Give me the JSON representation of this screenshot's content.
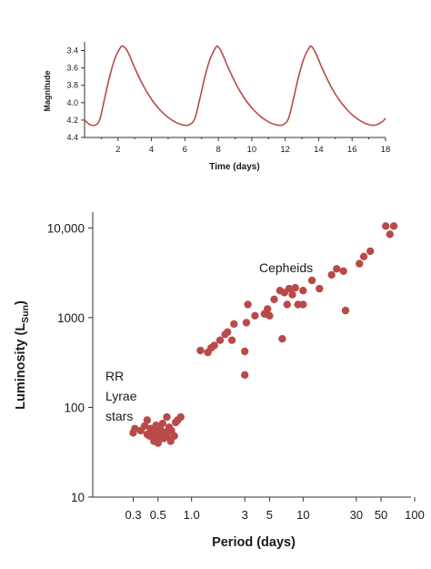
{
  "colors": {
    "data": "#b94a48",
    "axis": "#333333",
    "text": "#1a1a1a"
  },
  "chart_data": [
    {
      "type": "line",
      "title": "",
      "xlabel": "Time (days)",
      "ylabel": "Magnitude",
      "xlim": [
        0,
        18
      ],
      "ylim": [
        4.4,
        3.3
      ],
      "y_inverted": true,
      "x_ticks": [
        2,
        4,
        6,
        8,
        10,
        12,
        14,
        16,
        18
      ],
      "y_ticks": [
        3.4,
        3.6,
        3.8,
        4.0,
        4.2,
        4.4
      ],
      "x_tick_labels": [
        "2",
        "4",
        "6",
        "8",
        "10",
        "12",
        "14",
        "16",
        "18"
      ],
      "y_tick_labels": [
        "3.4",
        "3.6",
        "3.8",
        "4.0",
        "4.2",
        "4.4"
      ],
      "grid": false,
      "series": [
        {
          "x": [
            0.0,
            0.3,
            0.6,
            0.9,
            1.2,
            1.5,
            1.8,
            2.1,
            2.3,
            2.6,
            3.0,
            3.5,
            4.0,
            4.5,
            5.0,
            5.5,
            6.0,
            6.3,
            6.6,
            6.9,
            7.2,
            7.5,
            7.8,
            7.95,
            8.2,
            8.6,
            9.1,
            9.6,
            10.1,
            10.6,
            11.1,
            11.6,
            11.9,
            12.2,
            12.5,
            12.8,
            13.1,
            13.4,
            13.55,
            13.8,
            14.2,
            14.7,
            15.2,
            15.7,
            16.2,
            16.7,
            17.2,
            17.5,
            17.8,
            18.0
          ],
          "y": [
            4.2,
            4.25,
            4.26,
            4.2,
            3.95,
            3.7,
            3.5,
            3.38,
            3.35,
            3.42,
            3.6,
            3.8,
            3.96,
            4.08,
            4.17,
            4.23,
            4.26,
            4.25,
            4.18,
            3.95,
            3.7,
            3.5,
            3.38,
            3.35,
            3.42,
            3.6,
            3.8,
            3.96,
            4.08,
            4.17,
            4.23,
            4.26,
            4.25,
            4.18,
            3.95,
            3.7,
            3.5,
            3.38,
            3.35,
            3.42,
            3.6,
            3.8,
            3.96,
            4.08,
            4.17,
            4.23,
            4.26,
            4.25,
            4.22,
            4.18
          ]
        }
      ]
    },
    {
      "type": "scatter",
      "title": "",
      "xlabel": "Period (days)",
      "ylabel_main": "Luminosity (L",
      "ylabel_sub": "Sun",
      "ylabel_close": ")",
      "x_scale": "log",
      "y_scale": "log",
      "xlim": [
        0.13,
        100
      ],
      "ylim": [
        10,
        15000
      ],
      "x_ticks": [
        0.3,
        0.5,
        1.0,
        3,
        5,
        10,
        30,
        50,
        100
      ],
      "x_tick_labels": [
        "0.3",
        "0.5",
        "1.0",
        "3",
        "5",
        "10",
        "30",
        "50",
        "100"
      ],
      "y_ticks": [
        10,
        100,
        1000,
        10000
      ],
      "y_tick_labels": [
        "10",
        "100",
        "1000",
        "10,000"
      ],
      "grid": false,
      "annotations": [
        {
          "lines": [
            "RR",
            "Lyrae",
            "stars"
          ]
        },
        {
          "lines": [
            "Cepheids"
          ]
        }
      ],
      "series": [
        {
          "points": [
            [
              0.3,
              52
            ],
            [
              0.31,
              58
            ],
            [
              0.35,
              55
            ],
            [
              0.38,
              62
            ],
            [
              0.4,
              50
            ],
            [
              0.4,
              72
            ],
            [
              0.42,
              48
            ],
            [
              0.43,
              58
            ],
            [
              0.45,
              55
            ],
            [
              0.46,
              42
            ],
            [
              0.47,
              50
            ],
            [
              0.48,
              63
            ],
            [
              0.5,
              45
            ],
            [
              0.5,
              40
            ],
            [
              0.52,
              58
            ],
            [
              0.53,
              50
            ],
            [
              0.55,
              66
            ],
            [
              0.56,
              45
            ],
            [
              0.58,
              53
            ],
            [
              0.6,
              48
            ],
            [
              0.6,
              78
            ],
            [
              0.63,
              60
            ],
            [
              0.65,
              42
            ],
            [
              0.66,
              55
            ],
            [
              0.7,
              48
            ],
            [
              0.72,
              68
            ],
            [
              0.75,
              72
            ],
            [
              0.8,
              78
            ],
            [
              1.2,
              430
            ],
            [
              1.4,
              410
            ],
            [
              1.5,
              460
            ],
            [
              1.6,
              490
            ],
            [
              1.8,
              560
            ],
            [
              2.0,
              650
            ],
            [
              2.1,
              690
            ],
            [
              2.3,
              560
            ],
            [
              2.4,
              850
            ],
            [
              3.0,
              230
            ],
            [
              3.0,
              420
            ],
            [
              3.1,
              880
            ],
            [
              3.2,
              1400
            ],
            [
              3.7,
              1050
            ],
            [
              4.5,
              1100
            ],
            [
              4.8,
              1250
            ],
            [
              5.0,
              1050
            ],
            [
              5.5,
              1600
            ],
            [
              6.2,
              2000
            ],
            [
              6.5,
              580
            ],
            [
              6.8,
              1900
            ],
            [
              7.2,
              1400
            ],
            [
              7.5,
              2100
            ],
            [
              8.0,
              1800
            ],
            [
              8.5,
              2150
            ],
            [
              9.0,
              1400
            ],
            [
              10.0,
              1400
            ],
            [
              10.0,
              2000
            ],
            [
              12,
              2600
            ],
            [
              14,
              2100
            ],
            [
              18,
              3000
            ],
            [
              20,
              3500
            ],
            [
              23,
              3300
            ],
            [
              24,
              1200
            ],
            [
              32,
              4000
            ],
            [
              35,
              4800
            ],
            [
              40,
              5500
            ],
            [
              55,
              10500
            ],
            [
              60,
              8500
            ],
            [
              65,
              10500
            ]
          ]
        }
      ]
    }
  ]
}
